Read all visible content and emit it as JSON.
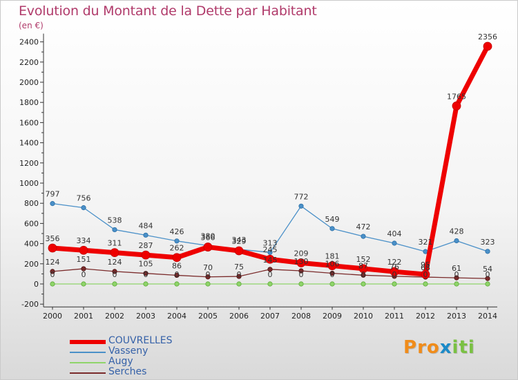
{
  "chart_data": {
    "type": "line",
    "title": "Evolution du Montant de la Dette par Habitant",
    "subtitle": "(en €)",
    "x": [
      "2000",
      "2001",
      "2002",
      "2003",
      "2004",
      "2005",
      "2006",
      "2007",
      "2008",
      "2009",
      "2010",
      "2011",
      "2012",
      "2013",
      "2014"
    ],
    "yticks": [
      "-200",
      "0",
      "200",
      "400",
      "600",
      "800",
      "1000",
      "1200",
      "1400",
      "1600",
      "1800",
      "2000",
      "2200",
      "2400"
    ],
    "ylim": [
      -200,
      2400
    ],
    "series": [
      {
        "name": "COUVRELLES",
        "color": "#ee0000",
        "values": [
          356,
          334,
          311,
          287,
          262,
          366,
          329,
          245,
          209,
          181,
          152,
          122,
          95,
          1765,
          2356
        ],
        "labels": [
          "356",
          "334",
          "311",
          "287",
          "262",
          "366",
          "329",
          "245",
          "209",
          "181",
          "152",
          "122",
          "95",
          "1765",
          "2356"
        ]
      },
      {
        "name": "Vasseny",
        "color": "#4a90c8",
        "values": [
          797,
          756,
          538,
          484,
          426,
          380,
          343,
          313,
          772,
          549,
          472,
          404,
          321,
          428,
          323
        ],
        "labels": [
          "797",
          "756",
          "538",
          "484",
          "426",
          "380",
          "343",
          "313",
          "772",
          "549",
          "472",
          "404",
          "321",
          "428",
          "323"
        ]
      },
      {
        "name": "Augy",
        "color": "#8fd46a",
        "values": [
          0,
          0,
          0,
          0,
          0,
          0,
          0,
          0,
          0,
          0,
          0,
          0,
          0,
          0,
          0
        ],
        "labels": [
          "0",
          "0",
          "0",
          "0",
          "0",
          "0",
          "0",
          "0",
          "0",
          "0",
          "0",
          "0",
          "0",
          "0",
          "0"
        ]
      },
      {
        "name": "Serches",
        "color": "#7a2a2a",
        "values": [
          124,
          151,
          124,
          105,
          86,
          70,
          75,
          145,
          130,
          106,
          87,
          76,
          68,
          61,
          54
        ],
        "labels": [
          "124",
          "151",
          "124",
          "105",
          "86",
          "70",
          "75",
          "145",
          "130",
          "106",
          "87",
          "76",
          "68",
          "61",
          "54"
        ]
      }
    ],
    "legend": [
      "COUVRELLES",
      "Vasseny",
      "Augy",
      "Serches"
    ],
    "grid": false
  },
  "logo": {
    "letters": [
      "P",
      "r",
      "o",
      "x",
      "i",
      "t",
      "i"
    ],
    "colors": [
      "#f08c1a",
      "#f08c1a",
      "#f08c1a",
      "#1b8ac8",
      "#7ac143",
      "#7ac143",
      "#7ac143"
    ]
  }
}
